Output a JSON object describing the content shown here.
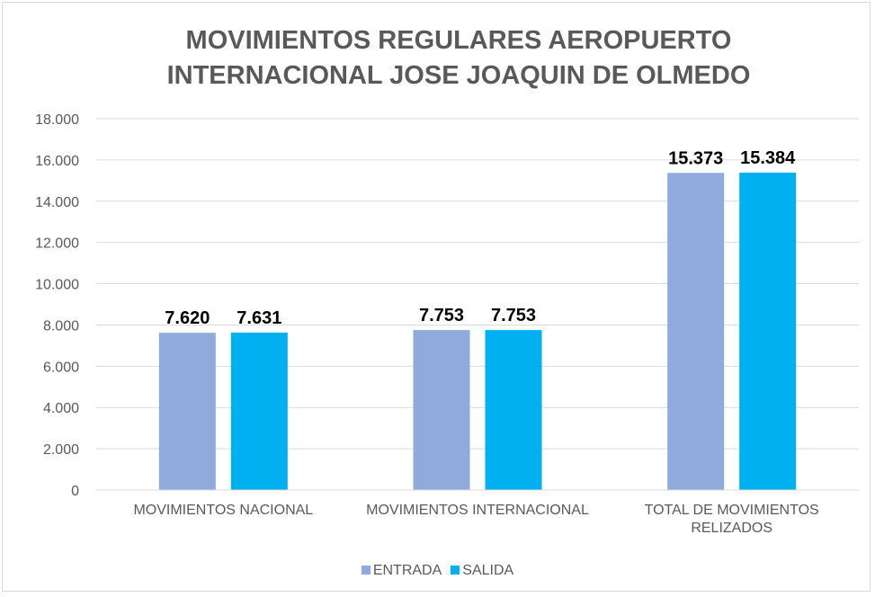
{
  "chart_data": {
    "type": "bar",
    "title": "MOVIMIENTOS REGULARES AEROPUERTO INTERNACIONAL JOSE JOAQUIN DE OLMEDO",
    "categories": [
      "MOVIMIENTOS NACIONAL",
      "MOVIMIENTOS INTERNACIONAL",
      "TOTAL DE MOVIMIENTOS RELIZADOS"
    ],
    "series": [
      {
        "name": "ENTRADA",
        "color": "#8faadc",
        "values": [
          7620,
          7753,
          15373
        ],
        "value_labels": [
          "7.620",
          "7.753",
          "15.373"
        ]
      },
      {
        "name": "SALIDA",
        "color": "#00b0f0",
        "values": [
          7631,
          7753,
          15384
        ],
        "value_labels": [
          "7.631",
          "7.753",
          "15.384"
        ]
      }
    ],
    "ylim": [
      0,
      18000
    ],
    "yticks": [
      0,
      {
        "value": 2000,
        "label": "2.000"
      },
      {
        "value": 4000,
        "label": "4.000"
      },
      {
        "value": 6000,
        "label": "6.000"
      },
      {
        "value": 8000,
        "label": "8.000"
      },
      {
        "value": 10000,
        "label": "10.000"
      },
      {
        "value": 12000,
        "label": "12.000"
      },
      {
        "value": 14000,
        "label": "14.000"
      },
      {
        "value": 16000,
        "label": "16.000"
      },
      {
        "value": 18000,
        "label": "18.000"
      }
    ],
    "grid": true,
    "legend": "bottom"
  }
}
